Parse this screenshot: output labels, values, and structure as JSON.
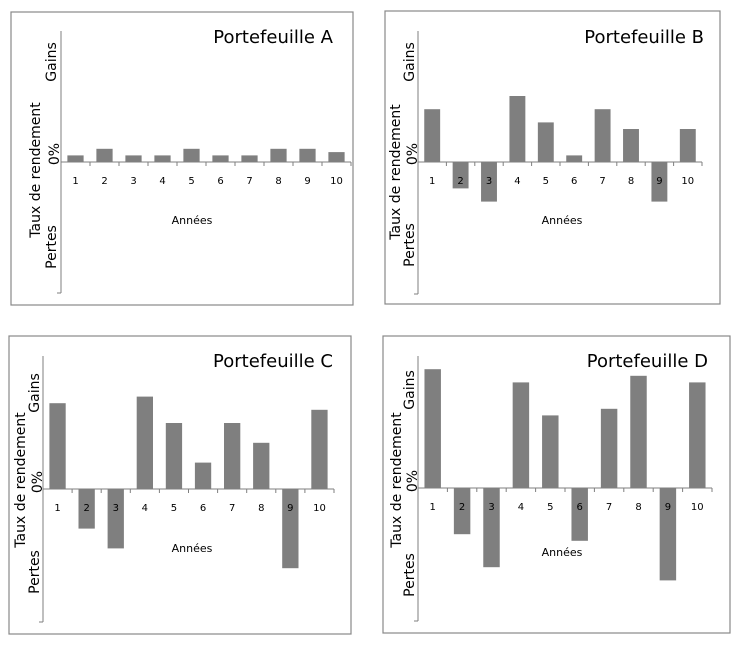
{
  "chart_data": [
    {
      "type": "bar",
      "title": "Portefeuille A",
      "categories": [
        "1",
        "2",
        "3",
        "4",
        "5",
        "6",
        "7",
        "8",
        "9",
        "10"
      ],
      "values": [
        1,
        2,
        1,
        1,
        2,
        1,
        1,
        2,
        2,
        1.5
      ],
      "xlabel": "Années",
      "ylabel": "Taux de rendement",
      "ytick_labels": {
        "top": "Gains",
        "zero": "0%",
        "bottom": "Pertes"
      },
      "ylim": [
        -20,
        20
      ],
      "grid": false,
      "bar_color": "#7f7f7f"
    },
    {
      "type": "bar",
      "title": "Portefeuille B",
      "categories": [
        "1",
        "2",
        "3",
        "4",
        "5",
        "6",
        "7",
        "8",
        "9",
        "10"
      ],
      "values": [
        8,
        -4,
        -6,
        10,
        6,
        1,
        8,
        5,
        -6,
        5
      ],
      "xlabel": "Années",
      "ylabel": "Taux de rendement",
      "ytick_labels": {
        "top": "Gains",
        "zero": "0%",
        "bottom": "Pertes"
      },
      "ylim": [
        -20,
        20
      ],
      "grid": false,
      "bar_color": "#7f7f7f"
    },
    {
      "type": "bar",
      "title": "Portefeuille C",
      "categories": [
        "1",
        "2",
        "3",
        "4",
        "5",
        "6",
        "7",
        "8",
        "9",
        "10"
      ],
      "values": [
        13,
        -6,
        -9,
        14,
        10,
        4,
        10,
        7,
        -12,
        12
      ],
      "xlabel": "Années",
      "ylabel": "Taux de rendement",
      "ytick_labels": {
        "top": "Gains",
        "zero": "0%",
        "bottom": "Pertes"
      },
      "ylim": [
        -20,
        20
      ],
      "grid": false,
      "bar_color": "#7f7f7f"
    },
    {
      "type": "bar",
      "title": "Portefeuille D",
      "categories": [
        "1",
        "2",
        "3",
        "4",
        "5",
        "6",
        "7",
        "8",
        "9",
        "10"
      ],
      "values": [
        18,
        -7,
        -12,
        16,
        11,
        -8,
        12,
        17,
        -14,
        16
      ],
      "xlabel": "Années",
      "ylabel": "Taux de rendement",
      "ytick_labels": {
        "top": "Gains",
        "zero": "0%",
        "bottom": "Pertes"
      },
      "ylim": [
        -20,
        20
      ],
      "grid": false,
      "bar_color": "#7f7f7f"
    }
  ]
}
